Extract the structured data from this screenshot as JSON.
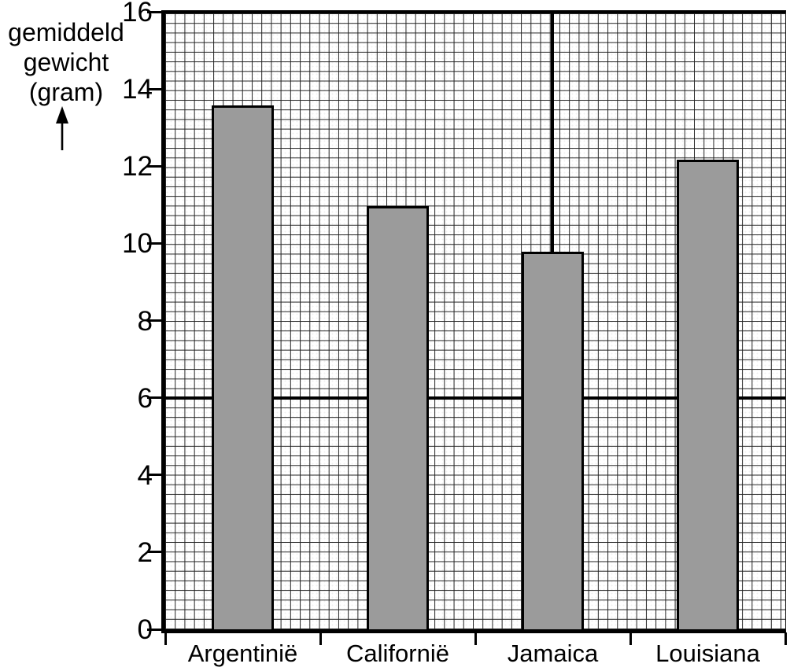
{
  "chart_data": {
    "type": "bar",
    "title": "",
    "categories": [
      "Argentinië",
      "Californië",
      "Jamaica",
      "Louisiana"
    ],
    "values": [
      13.6,
      11.0,
      9.8,
      12.2
    ],
    "xlabel": "",
    "ylabel": "gemiddeld gewicht (gram)",
    "ylabel_lines": [
      "gemiddeld",
      "gewicht",
      "(gram)"
    ],
    "ylim": [
      0,
      16
    ],
    "yticks": [
      0,
      2,
      4,
      6,
      8,
      10,
      12,
      14,
      16
    ],
    "major_hline_value": 6,
    "major_vline_fraction": 0.624,
    "grid": "fine graph-paper grid, on",
    "legend_position": "none",
    "bar_color": "#9b9b9b",
    "bar_border_color": "#000000",
    "grid_line_color": "#212121",
    "axis_color": "#000000",
    "background_color": "#ffffff"
  }
}
